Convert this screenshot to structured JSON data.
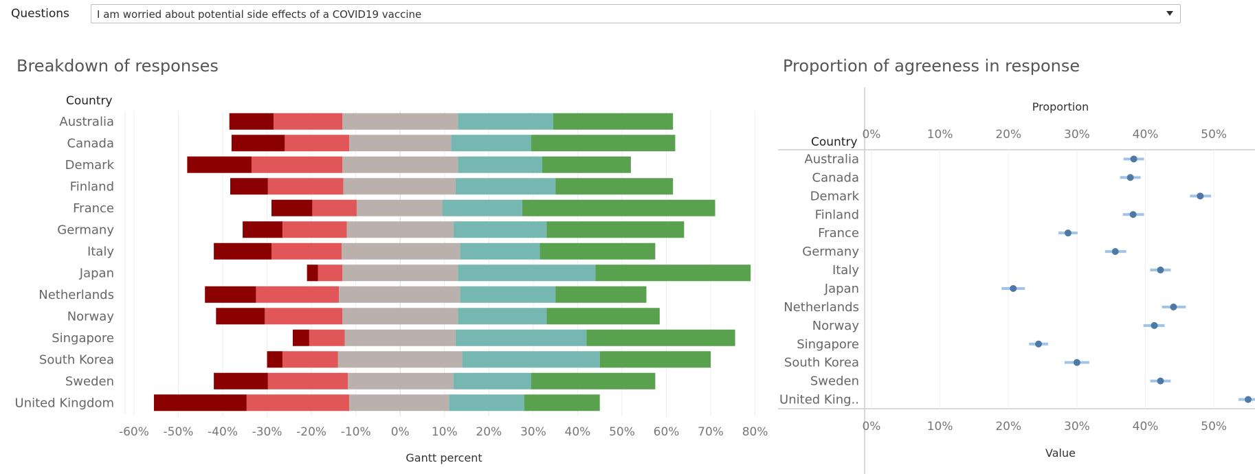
{
  "filter": {
    "label": "Questions",
    "selected": "I am worried about potential side effects of a COVID19 vaccine"
  },
  "colors": {
    "strongly_disagree": "#8b0000",
    "disagree": "#e15759",
    "neutral": "#bab0ac",
    "agree": "#76b7b2",
    "strongly_agree": "#59a14f",
    "dot": "#4e79a7",
    "ci": "#a0c4e8"
  },
  "chart_data": [
    {
      "type": "bar",
      "subtype": "diverging-stacked-gantt",
      "title": "Breakdown of responses",
      "row_header": "Country",
      "xlabel": "Gantt percent",
      "xlim": [
        -62,
        83
      ],
      "xticks": [
        -60,
        -50,
        -40,
        -30,
        -20,
        -10,
        0,
        10,
        20,
        30,
        40,
        50,
        60,
        70,
        80
      ],
      "tick_suffix": "%",
      "grid": true,
      "categories": [
        "Australia",
        "Canada",
        "Demark",
        "Finland",
        "France",
        "Germany",
        "Italy",
        "Japan",
        "Netherlands",
        "Norway",
        "Singapore",
        "South Korea",
        "Sweden",
        "United Kingdom"
      ],
      "series": [
        {
          "color_key": "strongly_disagree",
          "starts": [
            -38.5,
            -38,
            -48,
            -38.3,
            -29,
            -35.5,
            -42,
            -21,
            -44,
            -41.5,
            -24.2,
            -30,
            -42,
            -55.5
          ],
          "ends": [
            -28.5,
            -26,
            -33.5,
            -29.8,
            -19.8,
            -26.5,
            -29,
            -18.5,
            -32.5,
            -30.5,
            -20.5,
            -26.5,
            -29.8,
            -34.6
          ]
        },
        {
          "color_key": "disagree",
          "starts": [
            -28.5,
            -26,
            -33.5,
            -29.8,
            -19.8,
            -26.5,
            -29,
            -18.5,
            -32.5,
            -30.5,
            -20.5,
            -26.5,
            -29.8,
            -34.6
          ],
          "ends": [
            -13,
            -11.5,
            -13,
            -12.8,
            -9.8,
            -12,
            -13.2,
            -13,
            -13.8,
            -13,
            -12.5,
            -14,
            -11.8,
            -11.5
          ]
        },
        {
          "color_key": "neutral",
          "starts": [
            -13,
            -11.5,
            -13,
            -12.8,
            -9.8,
            -12,
            -13.2,
            -13,
            -13.8,
            -13,
            -12.5,
            -14,
            -11.8,
            -11.5
          ],
          "ends": [
            13,
            11.5,
            13,
            12.5,
            9.5,
            12,
            13.5,
            13,
            13.5,
            13,
            12.5,
            14,
            12,
            11
          ]
        },
        {
          "color_key": "agree",
          "starts": [
            13,
            11.5,
            13,
            12.5,
            9.5,
            12,
            13.5,
            13,
            13.5,
            13,
            12.5,
            14,
            12,
            11
          ],
          "ends": [
            34.5,
            29.5,
            32,
            35,
            27.5,
            33,
            31.5,
            44,
            35,
            33,
            42,
            45,
            29.5,
            28
          ]
        },
        {
          "color_key": "strongly_agree",
          "starts": [
            34.5,
            29.5,
            32,
            35,
            27.5,
            33,
            31.5,
            44,
            35,
            33,
            42,
            45,
            29.5,
            28
          ],
          "ends": [
            61.5,
            62,
            52,
            61.5,
            71,
            64,
            57.5,
            79,
            55.5,
            58.5,
            75.5,
            70,
            57.5,
            45
          ]
        }
      ]
    },
    {
      "type": "scatter",
      "subtype": "dot-with-interval",
      "title": "Proportion of agreeness in response",
      "row_header": "Country",
      "top_axis_title": "Proportion",
      "xlabel": "Value",
      "xlim": [
        -1,
        56
      ],
      "xticks": [
        0,
        10,
        20,
        30,
        40,
        50
      ],
      "tick_suffix": "%",
      "grid": true,
      "categories": [
        "Australia",
        "Canada",
        "Demark",
        "Finland",
        "France",
        "Germany",
        "Italy",
        "Japan",
        "Netherlands",
        "Norway",
        "Singapore",
        "South Korea",
        "Sweden",
        "United King.."
      ],
      "values": [
        38.3,
        37.8,
        48,
        38.2,
        28.7,
        35.6,
        42.2,
        20.7,
        44.1,
        41.3,
        24.4,
        30,
        42.2,
        55
      ],
      "lower": [
        36.8,
        36.3,
        46.5,
        36.7,
        27.3,
        34.1,
        40.7,
        19.0,
        42.4,
        39.7,
        23.0,
        28.2,
        40.7,
        53.6
      ],
      "upper": [
        39.8,
        39.3,
        49.6,
        39.8,
        30.1,
        37.2,
        43.7,
        22.4,
        45.9,
        42.8,
        25.8,
        31.8,
        43.7,
        56.4
      ]
    }
  ]
}
